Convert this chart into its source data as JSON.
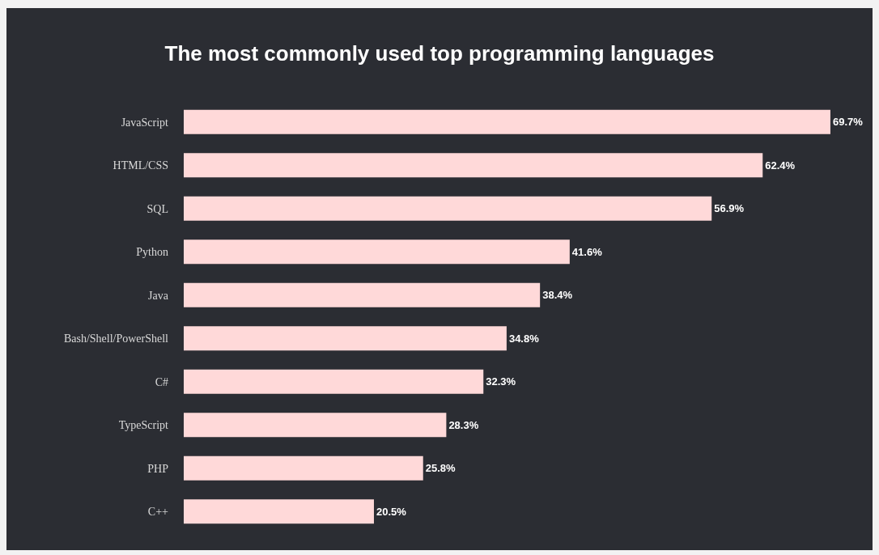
{
  "chart_data": {
    "type": "bar",
    "orientation": "horizontal",
    "title": "The most commonly used top programming languages",
    "categories": [
      "JavaScript",
      "HTML/CSS",
      "SQL",
      "Python",
      "Java",
      "Bash/Shell/PowerShell",
      "C#",
      "TypeScript",
      "PHP",
      "C++"
    ],
    "values": [
      69.7,
      62.4,
      56.9,
      41.6,
      38.4,
      34.8,
      32.3,
      28.3,
      25.8,
      20.5
    ],
    "value_labels": [
      "69.7%",
      "62.4%",
      "56.9%",
      "41.6%",
      "38.4%",
      "34.8%",
      "32.3%",
      "28.3%",
      "25.8%",
      "20.5%"
    ],
    "color": "#ffd9d9",
    "tick_labels": "y",
    "legend": false
  }
}
